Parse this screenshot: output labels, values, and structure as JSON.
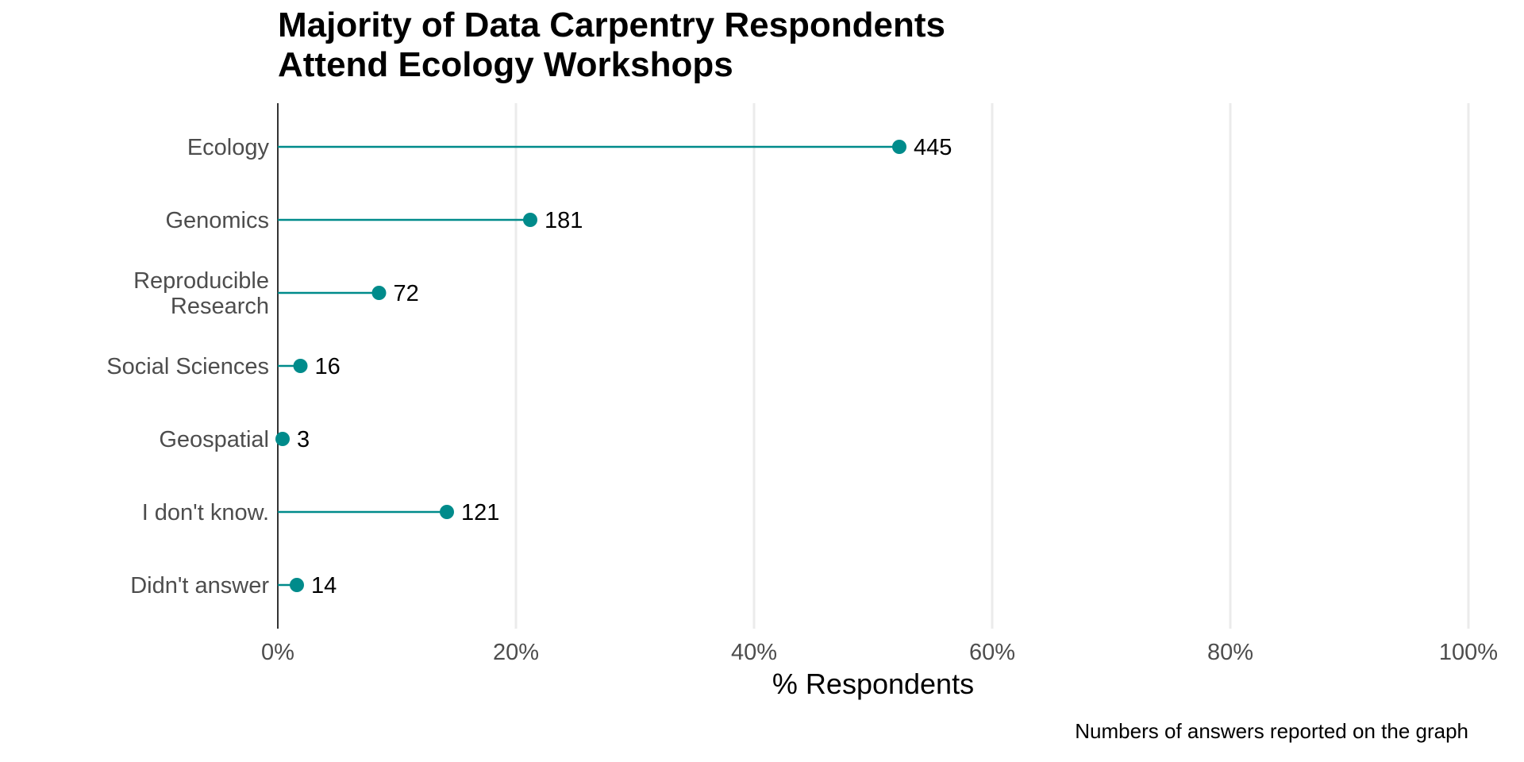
{
  "chart_data": {
    "type": "lollipop",
    "title_lines": [
      "Majority of Data Carpentry Respondents",
      "Attend Ecology Workshops"
    ],
    "categories": [
      [
        "Ecology"
      ],
      [
        "Genomics"
      ],
      [
        "Reproducible",
        "Research"
      ],
      [
        "Social Sciences"
      ],
      [
        "Geospatial"
      ],
      [
        "I don't know."
      ],
      [
        "Didn't answer"
      ]
    ],
    "counts": [
      445,
      181,
      72,
      16,
      3,
      121,
      14
    ],
    "percent": [
      52.2,
      21.2,
      8.5,
      1.9,
      0.4,
      14.2,
      1.6
    ],
    "xlabel": "% Respondents",
    "xlim": [
      0,
      100
    ],
    "xticks": [
      0,
      20,
      40,
      60,
      80,
      100
    ],
    "xtick_labels": [
      "0%",
      "20%",
      "40%",
      "60%",
      "80%",
      "100%"
    ],
    "caption": "Numbers of answers reported on the graph",
    "series_color": "#008b8b",
    "grid": "vertical major gridlines"
  }
}
